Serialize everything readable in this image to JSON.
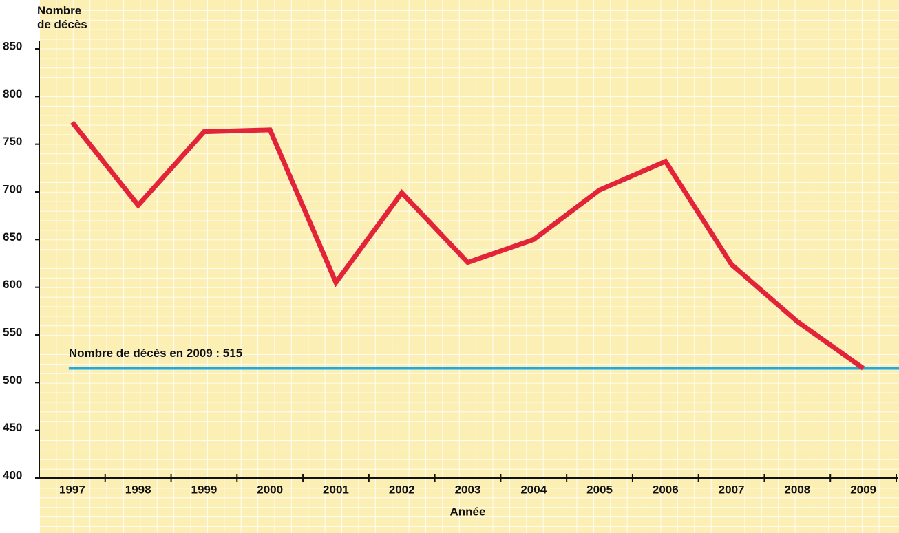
{
  "chart_data": {
    "type": "line",
    "ylabel": "Nombre de décès",
    "xlabel": "Année",
    "categories": [
      "1997",
      "1998",
      "1999",
      "2000",
      "2001",
      "2002",
      "2003",
      "2004",
      "2005",
      "2006",
      "2007",
      "2008",
      "2009"
    ],
    "series": [
      {
        "name": "Nombre de décès",
        "color": "#e2233a",
        "values": [
          773,
          686,
          763,
          765,
          605,
          699,
          626,
          650,
          702,
          732,
          624,
          564,
          515
        ]
      }
    ],
    "reference": {
      "value": 515,
      "label": "Nombre de décès en 2009 : 515",
      "color": "#1ea9e0"
    },
    "ylim": [
      400,
      850
    ],
    "yticks": [
      400,
      450,
      500,
      550,
      600,
      650,
      700,
      750,
      800,
      850
    ]
  }
}
